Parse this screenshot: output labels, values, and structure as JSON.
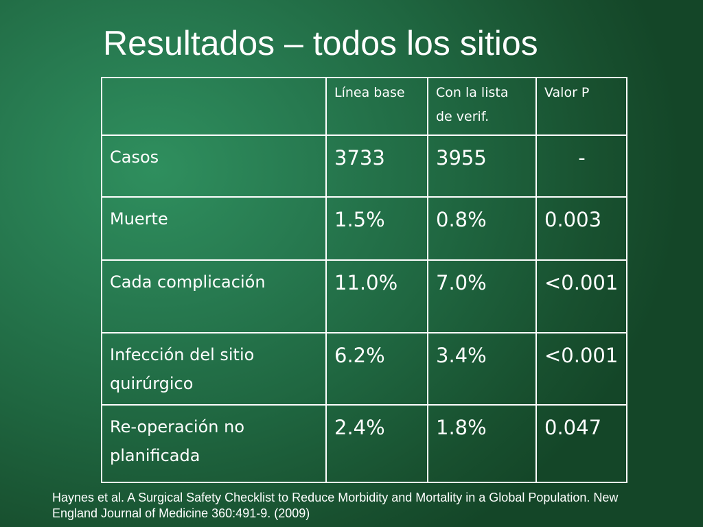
{
  "slide": {
    "title": "Resultados – todos los sitios",
    "citation": "Haynes et al. A Surgical Safety Checklist to Reduce Morbidity and Mortality in a Global Population. New England Journal of Medicine 360:491-9. (2009)"
  },
  "table": {
    "headers": [
      "",
      "Línea base",
      "Con la lista de verif.",
      "Valor P"
    ],
    "rows": [
      {
        "label": "Casos",
        "baseline": "3733",
        "checklist": "3955",
        "p": "-"
      },
      {
        "label": "Muerte",
        "baseline": "1.5%",
        "checklist": "0.8%",
        "p": "0.003"
      },
      {
        "label": "Cada complicación",
        "baseline": "11.0%",
        "checklist": "7.0%",
        "p": "<0.001"
      },
      {
        "label": "Infección del sitio quirúrgico",
        "baseline": "6.2%",
        "checklist": "3.4%",
        "p": "<0.001"
      },
      {
        "label": "Re-operación no planificada",
        "baseline": "2.4%",
        "checklist": "1.8%",
        "p": "0.047"
      }
    ]
  }
}
